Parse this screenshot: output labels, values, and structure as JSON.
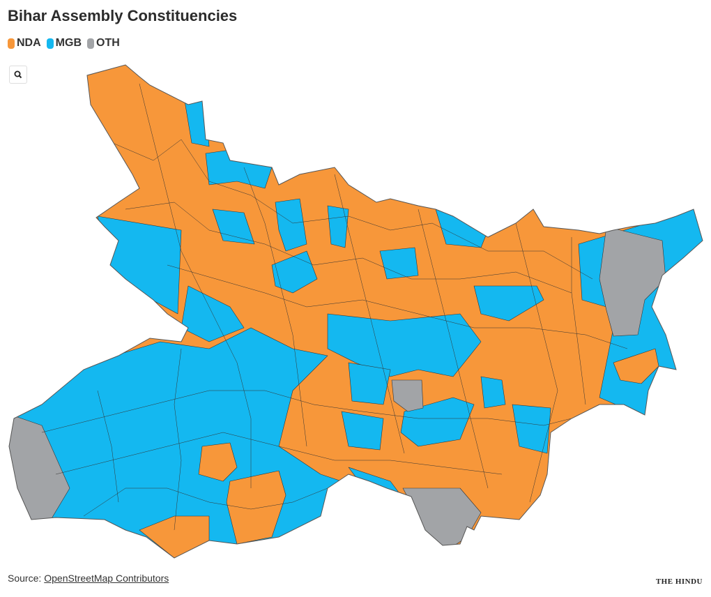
{
  "header": {
    "title": "Bihar Assembly Constituencies"
  },
  "legend": [
    {
      "label": "NDA",
      "color": "#f7973a"
    },
    {
      "label": "MGB",
      "color": "#14b8f0"
    },
    {
      "label": "OTH",
      "color": "#a2a4a7"
    }
  ],
  "footer": {
    "source_prefix": "Source:",
    "source_link": "OpenStreetMap Contributors",
    "logo": "THE HINDU"
  }
}
